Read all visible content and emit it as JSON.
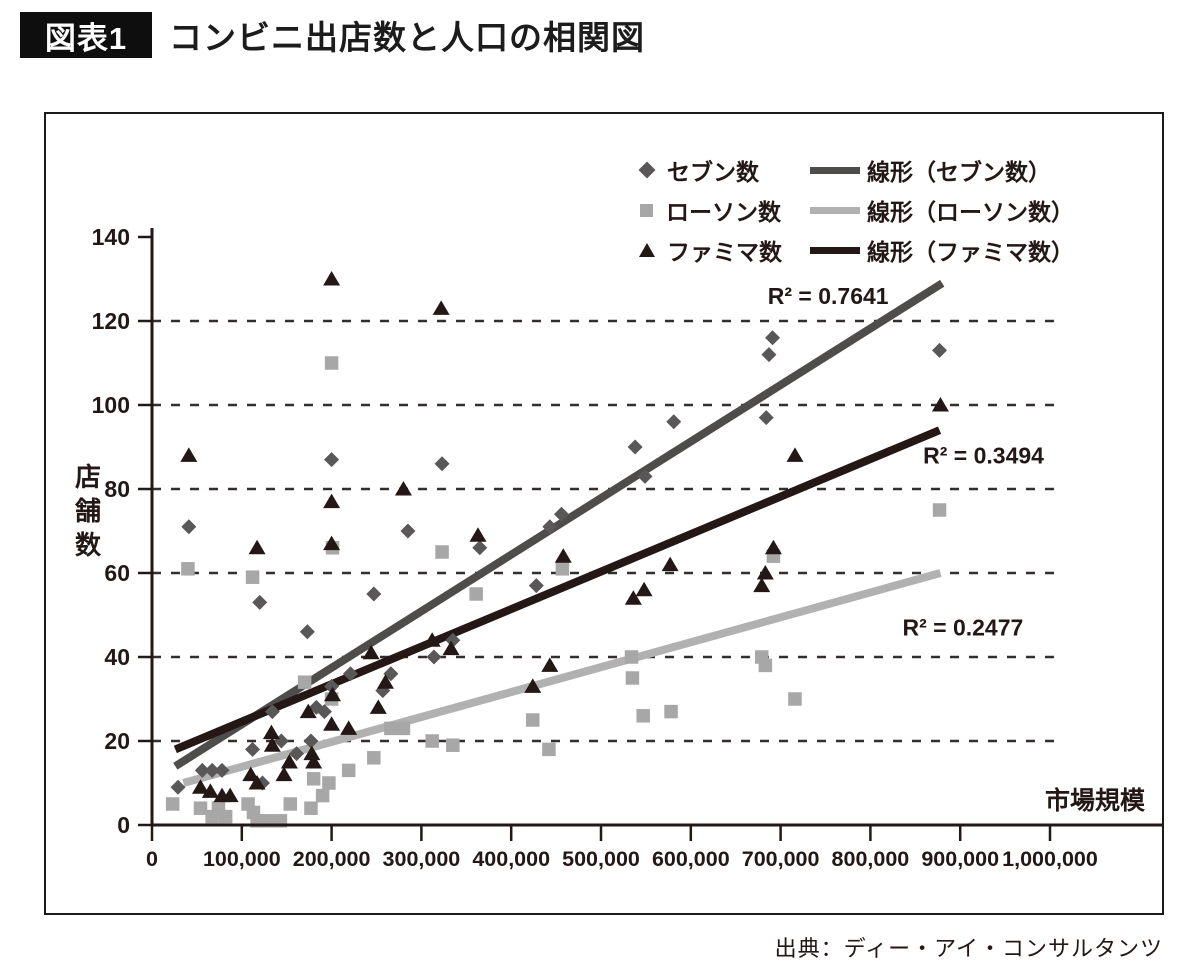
{
  "header": {
    "tag": "図表1",
    "title": "コンビニ出店数と人口の相関図"
  },
  "source": "出典：ディー・アイ・コンサルタンツ",
  "legend": {
    "items": [
      {
        "label": "セブン数",
        "marker": "diamond",
        "color": "#595757"
      },
      {
        "label": "ローソン数",
        "marker": "square",
        "color": "#a7a7a7"
      },
      {
        "label": "ファミマ数",
        "marker": "triangle",
        "color": "#231815"
      }
    ],
    "line_items": [
      {
        "label": "線形（セブン数）",
        "color": "#4f4c4c"
      },
      {
        "label": "線形（ローソン数）",
        "color": "#b1b1b1"
      },
      {
        "label": "線形（ファミマ数）",
        "color": "#231815"
      }
    ]
  },
  "chart_data": {
    "type": "scatter",
    "title": "コンビニ出店数と人口の相関図",
    "xlabel": "市場規模",
    "ylabel": "店舗数",
    "xlim": [
      0,
      1000000
    ],
    "ylim": [
      0,
      140
    ],
    "grid": "horizontal dashed lines at y = 20,40,60,80,100,120",
    "legend_position": "top-right",
    "x_ticks": [
      {
        "value": 0,
        "label": "0"
      },
      {
        "value": 100000,
        "label": "100,000"
      },
      {
        "value": 200000,
        "label": "200,000"
      },
      {
        "value": 300000,
        "label": "300,000"
      },
      {
        "value": 400000,
        "label": "400,000"
      },
      {
        "value": 500000,
        "label": "500,000"
      },
      {
        "value": 600000,
        "label": "600,000"
      },
      {
        "value": 700000,
        "label": "700,000"
      },
      {
        "value": 800000,
        "label": "800,000"
      },
      {
        "value": 900000,
        "label": "900,000"
      },
      {
        "value": 1000000,
        "label": "1,000,000"
      }
    ],
    "y_ticks": [
      0,
      20,
      40,
      60,
      80,
      100,
      120,
      140
    ],
    "gridline_values": [
      20,
      40,
      60,
      80,
      100,
      120
    ],
    "series": [
      {
        "name": "ローソン数",
        "marker": "square",
        "color": "#a7a7a7",
        "trendline": {
          "label": "線形（ローソン数）",
          "r2": 0.2477,
          "color": "#b1b1b1",
          "from": [
            35000,
            10
          ],
          "to": [
            878000,
            60
          ]
        },
        "points": [
          [
            40000,
            61
          ],
          [
            200000,
            110
          ],
          [
            877000,
            75
          ],
          [
            112000,
            59
          ],
          [
            201000,
            66
          ],
          [
            323000,
            65
          ],
          [
            457000,
            61
          ],
          [
            716000,
            30
          ],
          [
            692000,
            64
          ],
          [
            679000,
            40
          ],
          [
            683000,
            38
          ],
          [
            534000,
            40
          ],
          [
            535000,
            35
          ],
          [
            547000,
            26
          ],
          [
            578000,
            27
          ],
          [
            424000,
            25
          ],
          [
            442000,
            18
          ],
          [
            361000,
            55
          ],
          [
            312000,
            20
          ],
          [
            335000,
            19
          ],
          [
            266000,
            23
          ],
          [
            280000,
            23
          ],
          [
            247000,
            16
          ],
          [
            219000,
            13
          ],
          [
            180000,
            11
          ],
          [
            197000,
            10
          ],
          [
            190000,
            7
          ],
          [
            177000,
            4
          ],
          [
            170000,
            34
          ],
          [
            200000,
            30
          ],
          [
            154000,
            5
          ],
          [
            107000,
            5
          ],
          [
            113000,
            3
          ],
          [
            117000,
            1
          ],
          [
            130000,
            1
          ],
          [
            143000,
            1
          ],
          [
            23000,
            5
          ],
          [
            54000,
            4
          ],
          [
            67000,
            2
          ],
          [
            74000,
            4
          ],
          [
            82000,
            2
          ]
        ]
      },
      {
        "name": "セブン数",
        "marker": "diamond",
        "color": "#595757",
        "trendline": {
          "label": "線形（セブン数）",
          "r2": 0.7641,
          "color": "#4f4c4c",
          "from": [
            26000,
            14
          ],
          "to": [
            880000,
            129
          ]
        },
        "points": [
          [
            41000,
            71
          ],
          [
            200000,
            87
          ],
          [
            323000,
            86
          ],
          [
            285000,
            70
          ],
          [
            691000,
            116
          ],
          [
            687000,
            112
          ],
          [
            877000,
            113
          ],
          [
            684000,
            97
          ],
          [
            581000,
            96
          ],
          [
            538000,
            90
          ],
          [
            549000,
            83
          ],
          [
            456000,
            74
          ],
          [
            443000,
            71
          ],
          [
            365000,
            66
          ],
          [
            428000,
            57
          ],
          [
            247000,
            55
          ],
          [
            173000,
            46
          ],
          [
            335000,
            44
          ],
          [
            314000,
            40
          ],
          [
            266000,
            36
          ],
          [
            221000,
            36
          ],
          [
            257000,
            32
          ],
          [
            200000,
            33
          ],
          [
            183000,
            28
          ],
          [
            192000,
            27
          ],
          [
            134000,
            27
          ],
          [
            177000,
            20
          ],
          [
            144000,
            20
          ],
          [
            112000,
            18
          ],
          [
            120000,
            53
          ],
          [
            161000,
            17
          ],
          [
            123000,
            10
          ],
          [
            56000,
            13
          ],
          [
            67000,
            13
          ],
          [
            78000,
            13
          ],
          [
            29000,
            9
          ]
        ]
      },
      {
        "name": "ファミマ数",
        "marker": "triangle",
        "color": "#231815",
        "trendline": {
          "label": "線形（ファミマ数）",
          "r2": 0.3494,
          "color": "#231815",
          "from": [
            26000,
            18
          ],
          "to": [
            877000,
            94
          ]
        },
        "points": [
          [
            41000,
            88
          ],
          [
            200000,
            130
          ],
          [
            322000,
            123
          ],
          [
            280000,
            80
          ],
          [
            200000,
            77
          ],
          [
            117000,
            66
          ],
          [
            878000,
            100
          ],
          [
            716000,
            88
          ],
          [
            692000,
            66
          ],
          [
            683000,
            60
          ],
          [
            679000,
            57
          ],
          [
            577000,
            62
          ],
          [
            548000,
            56
          ],
          [
            536000,
            54
          ],
          [
            458000,
            64
          ],
          [
            363000,
            69
          ],
          [
            443000,
            38
          ],
          [
            424000,
            33
          ],
          [
            312000,
            44
          ],
          [
            333000,
            42
          ],
          [
            260000,
            34
          ],
          [
            252000,
            28
          ],
          [
            244000,
            41
          ],
          [
            219000,
            23
          ],
          [
            201000,
            31
          ],
          [
            200000,
            67
          ],
          [
            174000,
            27
          ],
          [
            200000,
            24
          ],
          [
            180000,
            15
          ],
          [
            178000,
            17
          ],
          [
            133000,
            22
          ],
          [
            134000,
            19
          ],
          [
            153000,
            15
          ],
          [
            147000,
            12
          ],
          [
            110000,
            12
          ],
          [
            117000,
            10
          ],
          [
            54000,
            9
          ],
          [
            65000,
            8
          ],
          [
            78000,
            7
          ],
          [
            87000,
            7
          ]
        ]
      }
    ],
    "annotations": [
      {
        "text": "R² = 0.7641",
        "x": 753000,
        "y": 126
      },
      {
        "text": "R² = 0.3494",
        "x": 926000,
        "y": 88
      },
      {
        "text": "R² = 0.2477",
        "x": 903000,
        "y": 47
      }
    ]
  }
}
